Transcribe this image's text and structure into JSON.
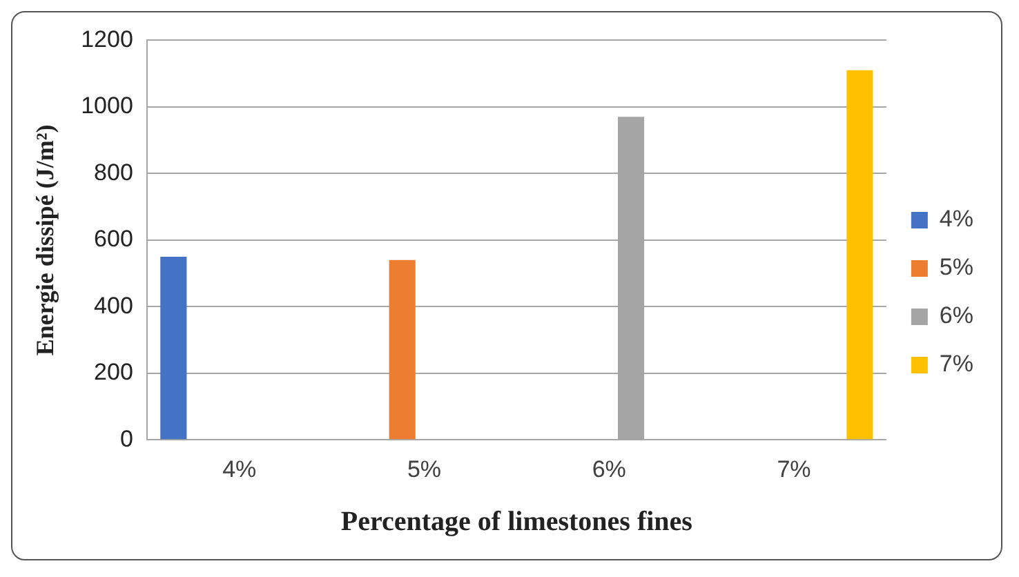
{
  "chart_data": {
    "type": "bar",
    "xlabel": "Percentage of limestones fines",
    "ylabel": "Energie dissipé (J/m²)",
    "categories": [
      "4%",
      "5%",
      "6%",
      "7%"
    ],
    "series": [
      {
        "name": "4%",
        "color": "#4472c4",
        "values": [
          550,
          null,
          null,
          null
        ]
      },
      {
        "name": "5%",
        "color": "#ed7d31",
        "values": [
          null,
          540,
          null,
          null
        ]
      },
      {
        "name": "6%",
        "color": "#a5a5a5",
        "values": [
          null,
          null,
          970,
          null
        ]
      },
      {
        "name": "7%",
        "color": "#ffc000",
        "values": [
          null,
          null,
          null,
          1110
        ]
      }
    ],
    "ylim": [
      0,
      1200
    ],
    "yticks": [
      0,
      200,
      400,
      600,
      800,
      1000,
      1200
    ],
    "grid": "y",
    "legend": "right"
  }
}
